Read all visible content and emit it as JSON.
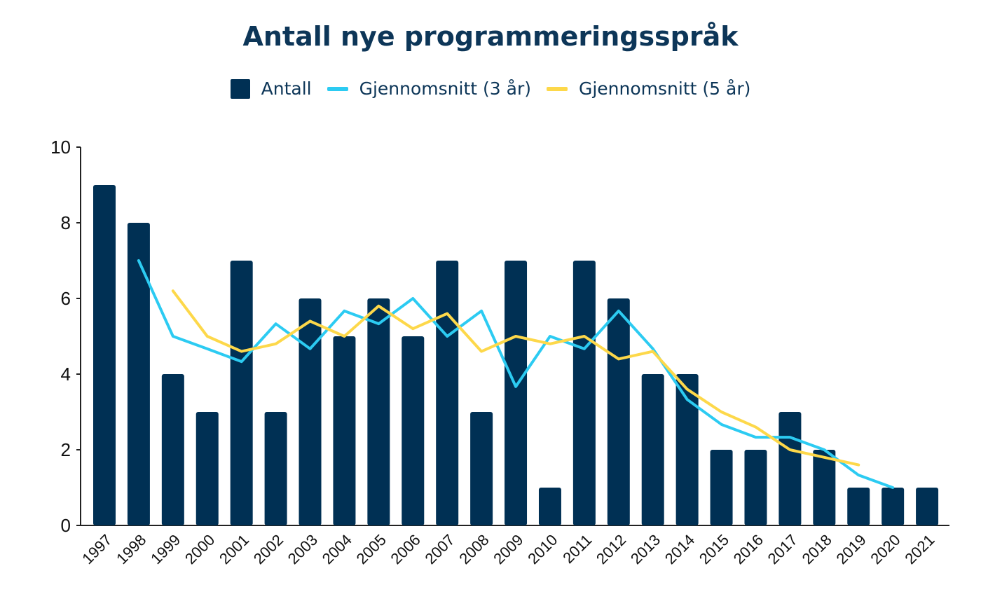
{
  "chart_data": {
    "type": "bar",
    "title": "Antall nye programmeringsspråk",
    "xlabel": "",
    "ylabel": "",
    "ylim": [
      0,
      10
    ],
    "yticks": [
      0,
      2,
      4,
      6,
      8,
      10
    ],
    "grid": false,
    "legend_position": "top-center",
    "categories": [
      "1997",
      "1998",
      "1999",
      "2000",
      "2001",
      "2002",
      "2003",
      "2004",
      "2005",
      "2006",
      "2007",
      "2008",
      "2009",
      "2010",
      "2011",
      "2012",
      "2013",
      "2014",
      "2015",
      "2016",
      "2017",
      "2018",
      "2019",
      "2020",
      "2021"
    ],
    "series": [
      {
        "name": "Antall",
        "type": "bar",
        "color": "#003054",
        "values": [
          9,
          8,
          4,
          3,
          7,
          3,
          6,
          5,
          6,
          5,
          7,
          3,
          7,
          1,
          7,
          6,
          4,
          4,
          2,
          2,
          3,
          2,
          1,
          1,
          1
        ]
      },
      {
        "name": "Gjennomsnitt (3 år)",
        "type": "line",
        "color": "#2ccbf2",
        "values": [
          null,
          7,
          5,
          4.67,
          4.33,
          5.33,
          4.67,
          5.67,
          5.33,
          6,
          5,
          5.67,
          3.67,
          5,
          4.67,
          5.67,
          4.67,
          3.33,
          2.67,
          2.33,
          2.33,
          2,
          1.33,
          1,
          null
        ]
      },
      {
        "name": "Gjennomsnitt (5 år)",
        "type": "line",
        "color": "#fdd84a",
        "values": [
          null,
          null,
          6.2,
          5,
          4.6,
          4.8,
          5.4,
          5,
          5.8,
          5.2,
          5.6,
          4.6,
          5,
          4.8,
          5,
          4.4,
          4.6,
          3.6,
          3,
          2.6,
          2,
          1.8,
          1.6,
          null,
          null
        ]
      }
    ]
  }
}
